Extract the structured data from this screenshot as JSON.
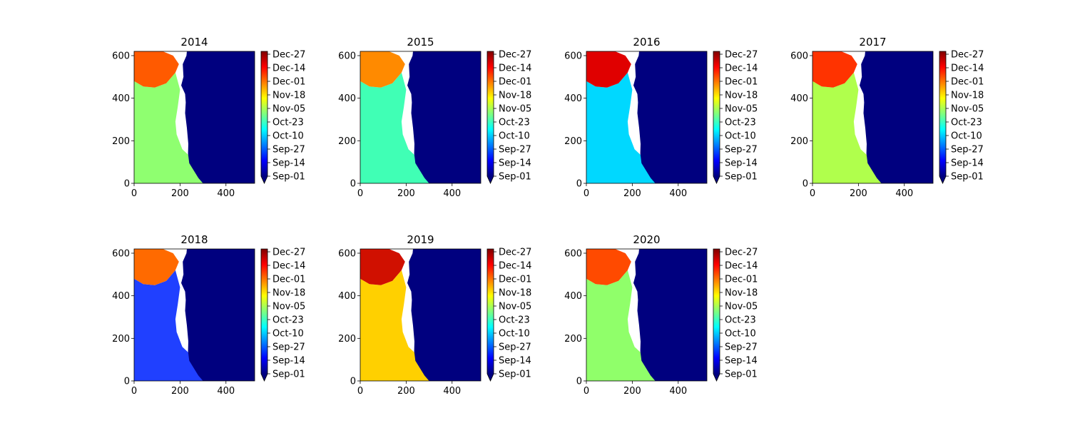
{
  "chart_data": {
    "type": "heatmap",
    "description_kind": "small-multiple raster maps with a date colorbar per panel",
    "colormap": "jet",
    "colormap_stops": [
      "#00007f",
      "#0000ff",
      "#007fff",
      "#00ffff",
      "#7fff7f",
      "#ffff00",
      "#ff7f00",
      "#ff0000",
      "#7f0000"
    ],
    "land_color": "#00007f",
    "no_data_color": "#ffffff",
    "xlim": [
      0,
      525
    ],
    "ylim": [
      0,
      620
    ],
    "xticks": [
      "0",
      "200",
      "400"
    ],
    "yticks": [
      "0",
      "200",
      "400",
      "600"
    ],
    "colorbar": {
      "ticks": [
        "Dec-27",
        "Dec-14",
        "Dec-01",
        "Nov-18",
        "Nov-05",
        "Oct-23",
        "Oct-10",
        "Sep-27",
        "Sep-14",
        "Sep-01"
      ],
      "extend": "min"
    },
    "panels": [
      {
        "title": "2014"
      },
      {
        "title": "2015"
      },
      {
        "title": "2016"
      },
      {
        "title": "2017"
      },
      {
        "title": "2018"
      },
      {
        "title": "2019"
      },
      {
        "title": "2020"
      }
    ]
  }
}
